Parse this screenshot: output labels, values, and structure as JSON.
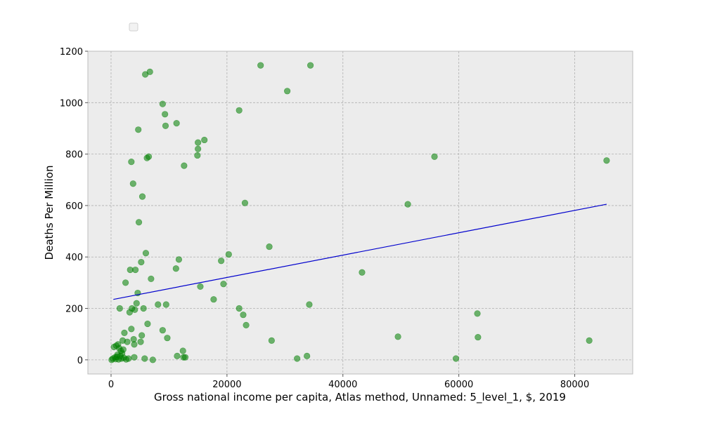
{
  "chart_data": {
    "type": "scatter",
    "title": "",
    "xlabel": "Gross national income per capita, Atlas method, Unnamed: 5_level_1, $, 2019",
    "ylabel": "Deaths Per Million",
    "xlim": [
      -4000,
      90000
    ],
    "ylim": [
      -55,
      1200
    ],
    "xticks": [
      0,
      20000,
      40000,
      60000,
      80000
    ],
    "yticks": [
      0,
      200,
      400,
      600,
      800,
      1000,
      1200
    ],
    "grid": true,
    "legend": {
      "placement": "upper-left",
      "entries": []
    },
    "colors": {
      "points": "#008000",
      "trendline": "#0000cd",
      "plot_background": "#ececec",
      "grid": "#b0b0b0",
      "spine": "#bcbcbc"
    },
    "series": [
      {
        "type": "scatter",
        "points": [
          [
            100,
            0
          ],
          [
            300,
            5
          ],
          [
            500,
            50
          ],
          [
            700,
            10
          ],
          [
            800,
            3
          ],
          [
            900,
            55
          ],
          [
            1000,
            12
          ],
          [
            1100,
            20
          ],
          [
            1200,
            60
          ],
          [
            1300,
            2
          ],
          [
            1400,
            45
          ],
          [
            1500,
            200
          ],
          [
            1600,
            15
          ],
          [
            1700,
            35
          ],
          [
            1800,
            5
          ],
          [
            1900,
            25
          ],
          [
            2000,
            75
          ],
          [
            2100,
            40
          ],
          [
            2200,
            8
          ],
          [
            2300,
            105
          ],
          [
            2500,
            300
          ],
          [
            2600,
            2
          ],
          [
            2800,
            70
          ],
          [
            3000,
            5
          ],
          [
            3200,
            185
          ],
          [
            3300,
            350
          ],
          [
            3500,
            120
          ],
          [
            3500,
            770
          ],
          [
            3600,
            200
          ],
          [
            3800,
            685
          ],
          [
            3900,
            80
          ],
          [
            4000,
            60
          ],
          [
            4000,
            10
          ],
          [
            4100,
            195
          ],
          [
            4200,
            350
          ],
          [
            4400,
            220
          ],
          [
            4600,
            260
          ],
          [
            4700,
            895
          ],
          [
            4800,
            535
          ],
          [
            5100,
            70
          ],
          [
            5200,
            380
          ],
          [
            5300,
            95
          ],
          [
            5400,
            635
          ],
          [
            5600,
            200
          ],
          [
            5800,
            5
          ],
          [
            5900,
            1110
          ],
          [
            6000,
            415
          ],
          [
            6200,
            785
          ],
          [
            6300,
            140
          ],
          [
            6500,
            790
          ],
          [
            6700,
            1120
          ],
          [
            6900,
            315
          ],
          [
            7200,
            0
          ],
          [
            8100,
            215
          ],
          [
            8900,
            115
          ],
          [
            8900,
            995
          ],
          [
            9300,
            955
          ],
          [
            9400,
            910
          ],
          [
            9500,
            215
          ],
          [
            9700,
            85
          ],
          [
            11200,
            355
          ],
          [
            11300,
            920
          ],
          [
            11400,
            15
          ],
          [
            11700,
            390
          ],
          [
            12400,
            35
          ],
          [
            12500,
            10
          ],
          [
            12600,
            755
          ],
          [
            12800,
            10
          ],
          [
            14900,
            795
          ],
          [
            15000,
            820
          ],
          [
            15000,
            845
          ],
          [
            15400,
            285
          ],
          [
            16100,
            855
          ],
          [
            17700,
            235
          ],
          [
            19000,
            385
          ],
          [
            19400,
            295
          ],
          [
            20300,
            410
          ],
          [
            22100,
            970
          ],
          [
            22100,
            200
          ],
          [
            22800,
            175
          ],
          [
            23100,
            610
          ],
          [
            23300,
            135
          ],
          [
            25800,
            1145
          ],
          [
            27300,
            440
          ],
          [
            27700,
            75
          ],
          [
            30400,
            1045
          ],
          [
            32100,
            5
          ],
          [
            33800,
            15
          ],
          [
            34200,
            215
          ],
          [
            34400,
            1145
          ],
          [
            43300,
            340
          ],
          [
            49500,
            90
          ],
          [
            51200,
            605
          ],
          [
            55800,
            790
          ],
          [
            59500,
            5
          ],
          [
            63200,
            180
          ],
          [
            63300,
            88
          ],
          [
            82500,
            75
          ],
          [
            85500,
            775
          ]
        ]
      },
      {
        "type": "line",
        "x": [
          400,
          85500
        ],
        "y": [
          235,
          605
        ]
      }
    ]
  }
}
